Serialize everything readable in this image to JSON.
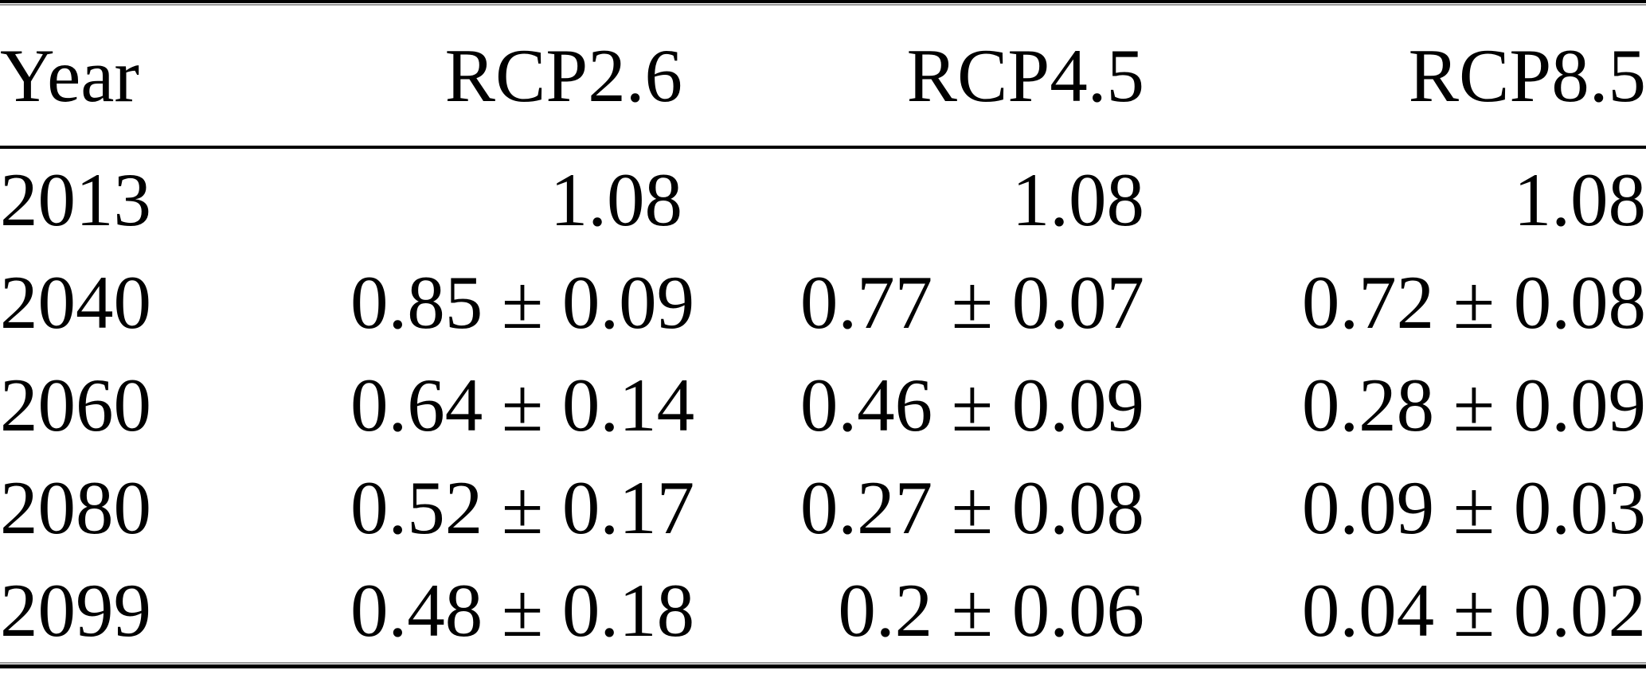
{
  "page": {
    "background": "#ffffff",
    "text_color": "#000000",
    "rule_color": "#000000"
  },
  "table": {
    "columns": [
      "Year",
      "RCP2.6",
      "RCP4.5",
      "RCP8.5"
    ],
    "rows": [
      [
        "2013",
        "1.08",
        "1.08",
        "1.08"
      ],
      [
        "2040",
        "0.85 ± 0.09",
        "0.77 ± 0.07",
        "0.72 ± 0.08"
      ],
      [
        "2060",
        "0.64 ± 0.14",
        "0.46 ± 0.09",
        "0.28 ± 0.09"
      ],
      [
        "2080",
        "0.52 ± 0.17",
        "0.27 ± 0.08",
        "0.09 ± 0.03"
      ],
      [
        "2099",
        "0.48 ± 0.18",
        "0.2 ± 0.06",
        "0.04 ± 0.02"
      ]
    ]
  },
  "chart_data": {
    "type": "table",
    "title": "",
    "categories": [
      2013,
      2040,
      2060,
      2080,
      2099
    ],
    "series": [
      {
        "name": "RCP2.6",
        "values": [
          1.08,
          0.85,
          0.64,
          0.52,
          0.48
        ],
        "uncertainty": [
          null,
          0.09,
          0.14,
          0.17,
          0.18
        ]
      },
      {
        "name": "RCP4.5",
        "values": [
          1.08,
          0.77,
          0.46,
          0.27,
          0.2
        ],
        "uncertainty": [
          null,
          0.07,
          0.09,
          0.08,
          0.06
        ]
      },
      {
        "name": "RCP8.5",
        "values": [
          1.08,
          0.72,
          0.28,
          0.09,
          0.04
        ],
        "uncertainty": [
          null,
          0.08,
          0.09,
          0.03,
          0.02
        ]
      }
    ]
  }
}
